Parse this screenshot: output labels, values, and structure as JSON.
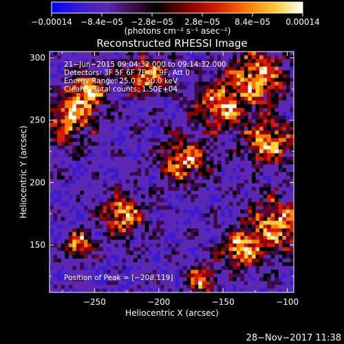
{
  "chart_data": {
    "type": "heatmap",
    "title": "Reconstructed RHESSI Image",
    "xlabel": "Heliocentric X (arcsec)",
    "ylabel": "Heliocentric Y (arcsec)",
    "xlim": [
      -285,
      -95
    ],
    "ylim": [
      112,
      305
    ],
    "x_ticks": [
      -250,
      -200,
      -150,
      -100
    ],
    "y_ticks": [
      150,
      200,
      250,
      300
    ],
    "x_tick_labels": [
      "−250",
      "−200",
      "−150",
      "−100"
    ],
    "y_tick_labels": [
      "150",
      "200",
      "250",
      "300"
    ],
    "colorbar": {
      "range": [
        -0.00014,
        0.00014
      ],
      "ticks": [
        -0.00014,
        -8.4e-05,
        -2.8e-05,
        2.8e-05,
        8.4e-05,
        0.00014
      ],
      "tick_labels": [
        "−0.00014",
        "−8.4e−05",
        "−2.8e−05",
        "2.8e−05",
        "8.4e−05",
        "0.00014"
      ],
      "unit_label": "(photons cm⁻² s⁻¹ asec⁻²)",
      "colormap": [
        "#0000ff",
        "#3c1ad2",
        "#5a28b4",
        "#3c0a46",
        "#000000",
        "#8c0000",
        "#d21e00",
        "#ff7800",
        "#ffd23c",
        "#ffffff"
      ]
    },
    "annotations": {
      "time_range": "21−Jun−2015 09:04:32.000 to 09:14:32.000",
      "detectors": "Detectors: 3F 5F 6F 7F 8F 9F, Att 0",
      "energy": "Energy Range: 25.0 − 50.0 keV",
      "method": "Clean    Total counts: 1.50E+04",
      "peak": "Position of Peak = [−208,119]"
    },
    "peak_position": [
      -208,
      119
    ],
    "grid": false,
    "legend": "none"
  },
  "footer_timestamp": "28−Nov−2017 11:38"
}
